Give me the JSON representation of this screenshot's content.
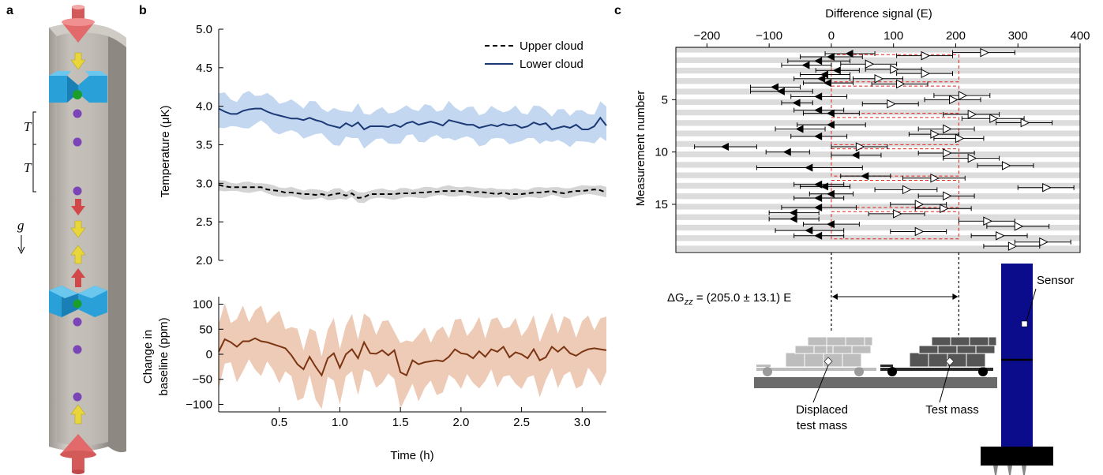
{
  "panels": {
    "a": "a",
    "b": "b",
    "c": "c"
  },
  "panel_a": {
    "T1": "T",
    "T2": "T",
    "g": "g"
  },
  "colors": {
    "upper": "#000000",
    "upper_band": "#cfcfcf",
    "lower": "#1b3a75",
    "lower_band": "#bcd3ee",
    "baseline": "#7b3512",
    "baseline_band": "#edcbb7",
    "marker_red": "#e0201b",
    "sensor_blue": "#0b0c8c",
    "stripe": "#dcdcdc"
  },
  "chart_data": [
    {
      "type": "line",
      "panel": "b-top",
      "ylabel": "Temperature (μK)",
      "xlim": [
        0,
        3.2
      ],
      "ylim": [
        2.0,
        5.0
      ],
      "yticks": [
        "5.0",
        "4.5",
        "4.0",
        "3.5",
        "3.0",
        "2.5",
        "2.0"
      ],
      "legend": "top-right",
      "x": [
        0.0,
        0.05,
        0.1,
        0.15,
        0.2,
        0.25,
        0.3,
        0.35,
        0.4,
        0.45,
        0.5,
        0.55,
        0.6,
        0.65,
        0.7,
        0.75,
        0.8,
        0.85,
        0.9,
        0.95,
        1.0,
        1.05,
        1.1,
        1.15,
        1.2,
        1.25,
        1.3,
        1.35,
        1.4,
        1.45,
        1.5,
        1.55,
        1.6,
        1.65,
        1.7,
        1.75,
        1.8,
        1.85,
        1.9,
        1.95,
        2.0,
        2.05,
        2.1,
        2.15,
        2.2,
        2.25,
        2.3,
        2.35,
        2.4,
        2.45,
        2.5,
        2.55,
        2.6,
        2.65,
        2.7,
        2.75,
        2.8,
        2.85,
        2.9,
        2.95,
        3.0,
        3.05,
        3.1,
        3.15,
        3.2
      ],
      "series": [
        {
          "name": "Upper cloud",
          "style": "dashed",
          "values": [
            2.98,
            2.96,
            2.95,
            2.95,
            2.95,
            2.95,
            2.95,
            2.95,
            2.92,
            2.91,
            2.9,
            2.88,
            2.88,
            2.87,
            2.86,
            2.86,
            2.85,
            2.86,
            2.84,
            2.86,
            2.87,
            2.84,
            2.87,
            2.81,
            2.82,
            2.86,
            2.86,
            2.86,
            2.86,
            2.86,
            2.87,
            2.87,
            2.87,
            2.88,
            2.88,
            2.89,
            2.89,
            2.9,
            2.9,
            2.9,
            2.9,
            2.89,
            2.88,
            2.89,
            2.88,
            2.87,
            2.86,
            2.88,
            2.86,
            2.86,
            2.86,
            2.87,
            2.88,
            2.88,
            2.89,
            2.9,
            2.88,
            2.87,
            2.89,
            2.9,
            2.9,
            2.91,
            2.92,
            2.91,
            2.88
          ],
          "band": 0.06
        },
        {
          "name": "Lower cloud",
          "style": "solid",
          "values": [
            3.97,
            3.93,
            3.9,
            3.9,
            3.94,
            3.96,
            3.97,
            3.97,
            3.93,
            3.9,
            3.88,
            3.86,
            3.84,
            3.84,
            3.82,
            3.85,
            3.82,
            3.8,
            3.76,
            3.74,
            3.72,
            3.78,
            3.74,
            3.79,
            3.7,
            3.74,
            3.74,
            3.74,
            3.73,
            3.76,
            3.73,
            3.78,
            3.8,
            3.76,
            3.78,
            3.8,
            3.78,
            3.75,
            3.82,
            3.8,
            3.78,
            3.76,
            3.76,
            3.72,
            3.74,
            3.76,
            3.74,
            3.77,
            3.75,
            3.76,
            3.72,
            3.74,
            3.79,
            3.76,
            3.78,
            3.7,
            3.72,
            3.74,
            3.72,
            3.76,
            3.7,
            3.7,
            3.74,
            3.85,
            3.75
          ],
          "band": 0.2
        }
      ]
    },
    {
      "type": "line",
      "panel": "b-bottom",
      "ylabel": "Change in baseline (ppm)",
      "xlabel": "Time (h)",
      "xlim": [
        0,
        3.2
      ],
      "ylim": [
        -115,
        115
      ],
      "yticks": [
        "100",
        "50",
        "0",
        "−50",
        "−100"
      ],
      "xticks": [
        "0.5",
        "1.0",
        "1.5",
        "2.0",
        "2.5",
        "3.0"
      ],
      "x": [
        0.0,
        0.05,
        0.1,
        0.15,
        0.2,
        0.25,
        0.3,
        0.35,
        0.4,
        0.45,
        0.5,
        0.55,
        0.6,
        0.65,
        0.7,
        0.75,
        0.8,
        0.85,
        0.9,
        0.95,
        1.0,
        1.05,
        1.1,
        1.15,
        1.2,
        1.25,
        1.3,
        1.35,
        1.4,
        1.45,
        1.5,
        1.55,
        1.6,
        1.65,
        1.7,
        1.75,
        1.8,
        1.85,
        1.9,
        1.95,
        2.0,
        2.05,
        2.1,
        2.15,
        2.2,
        2.25,
        2.3,
        2.35,
        2.4,
        2.45,
        2.5,
        2.55,
        2.6,
        2.65,
        2.7,
        2.75,
        2.8,
        2.85,
        2.9,
        2.95,
        3.0,
        3.05,
        3.1,
        3.15,
        3.2
      ],
      "series": [
        {
          "name": "",
          "values": [
            5,
            30,
            24,
            15,
            26,
            26,
            32,
            26,
            24,
            20,
            16,
            12,
            -2,
            -20,
            -30,
            -5,
            -25,
            -42,
            -8,
            2,
            -27,
            0,
            10,
            -8,
            24,
            2,
            1,
            8,
            -2,
            8,
            -36,
            -42,
            -12,
            -20,
            -16,
            -14,
            -12,
            -14,
            -5,
            10,
            2,
            0,
            -8,
            6,
            -5,
            10,
            5,
            15,
            -6,
            4,
            0,
            -8,
            10,
            -12,
            -6,
            15,
            5,
            15,
            2,
            -3,
            5,
            10,
            12,
            10,
            8
          ],
          "band": 55
        }
      ]
    },
    {
      "type": "scatter",
      "panel": "c",
      "title": "Difference signal (E)",
      "ylabel": "Measurement number",
      "xlim": [
        -250,
        400
      ],
      "ylim": [
        0,
        19
      ],
      "xticks": [
        "−200",
        "−100",
        "0",
        "100",
        "200",
        "300",
        "400"
      ],
      "yticks": [
        "5",
        "10",
        "15"
      ],
      "result_label": "(205.0 ± 13.1) E",
      "result_symbol": "ΔG",
      "result_sub": "zz",
      "result": {
        "value": 205.0,
        "error": 13.1
      },
      "boxes": [
        {
          "m_from": 1,
          "m_to": 3
        },
        {
          "m_from": 4,
          "m_to": 6
        },
        {
          "m_from": 7,
          "m_to": 9
        },
        {
          "m_from": 10,
          "m_to": 12
        },
        {
          "m_from": 13,
          "m_to": 15
        },
        {
          "m_from": 16,
          "m_to": 18
        }
      ],
      "filled": [
        [
          0.6,
          30,
          40
        ],
        [
          0.9,
          0,
          50
        ],
        [
          1.3,
          -20,
          50
        ],
        [
          1.7,
          -40,
          40
        ],
        [
          2.2,
          10,
          35
        ],
        [
          2.6,
          -10,
          40
        ],
        [
          3.0,
          -15,
          45
        ],
        [
          3.4,
          -5,
          40
        ],
        [
          3.8,
          -90,
          40
        ],
        [
          4.2,
          -80,
          50
        ],
        [
          4.7,
          -20,
          45
        ],
        [
          5.3,
          -55,
          25
        ],
        [
          6.0,
          -20,
          40
        ],
        [
          6.3,
          0,
          45
        ],
        [
          7.4,
          0,
          55
        ],
        [
          7.8,
          -50,
          40
        ],
        [
          8.5,
          -20,
          45
        ],
        [
          9.5,
          -170,
          50
        ],
        [
          10.0,
          -70,
          35
        ],
        [
          10.3,
          40,
          40
        ],
        [
          11.5,
          -35,
          85
        ],
        [
          12.3,
          55,
          40
        ],
        [
          13.1,
          -20,
          40
        ],
        [
          13.3,
          -10,
          40
        ],
        [
          14.0,
          0,
          35
        ],
        [
          14.4,
          -20,
          40
        ],
        [
          15.3,
          -20,
          60
        ],
        [
          15.8,
          -60,
          40
        ],
        [
          16.4,
          -60,
          40
        ],
        [
          16.9,
          0,
          45
        ],
        [
          17.5,
          -35,
          55
        ],
        [
          18.0,
          -20,
          40
        ]
      ],
      "open": [
        [
          0.5,
          245,
          50
        ],
        [
          0.8,
          150,
          45
        ],
        [
          1.6,
          60,
          45
        ],
        [
          2.1,
          100,
          45
        ],
        [
          2.5,
          150,
          45
        ],
        [
          3.0,
          75,
          40
        ],
        [
          3.5,
          110,
          45
        ],
        [
          4.6,
          210,
          45
        ],
        [
          5.0,
          195,
          45
        ],
        [
          5.4,
          95,
          45
        ],
        [
          6.4,
          225,
          45
        ],
        [
          6.8,
          260,
          50
        ],
        [
          7.2,
          310,
          45
        ],
        [
          7.8,
          185,
          45
        ],
        [
          8.3,
          165,
          40
        ],
        [
          8.7,
          205,
          40
        ],
        [
          9.5,
          45,
          45
        ],
        [
          10.1,
          185,
          45
        ],
        [
          10.6,
          225,
          45
        ],
        [
          11.3,
          280,
          45
        ],
        [
          12.5,
          165,
          50
        ],
        [
          13.4,
          345,
          45
        ],
        [
          13.6,
          120,
          50
        ],
        [
          14.2,
          185,
          45
        ],
        [
          15.0,
          140,
          45
        ],
        [
          15.4,
          180,
          45
        ],
        [
          15.9,
          105,
          45
        ],
        [
          16.6,
          250,
          45
        ],
        [
          17.1,
          300,
          50
        ],
        [
          17.6,
          140,
          45
        ],
        [
          18.0,
          270,
          45
        ],
        [
          18.6,
          340,
          45
        ],
        [
          19.0,
          290,
          45
        ]
      ]
    }
  ],
  "diagram": {
    "sensor_label": "Sensor",
    "displaced_label_1": "Displaced",
    "displaced_label_2": "test mass",
    "test_mass_label": "Test mass"
  }
}
